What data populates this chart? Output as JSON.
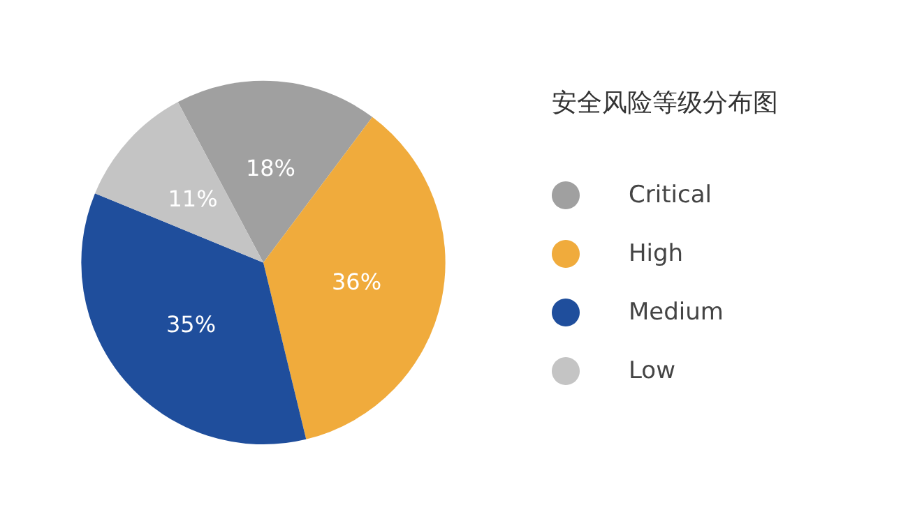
{
  "chart_data": {
    "type": "pie",
    "title": "安全风险等级分布图",
    "categories": [
      "Critical",
      "High",
      "Medium",
      "Low"
    ],
    "values": [
      18,
      36,
      35,
      11
    ],
    "value_labels": [
      "18%",
      "36%",
      "35%",
      "11%"
    ],
    "colors": [
      "#a0a0a0",
      "#f0ab3c",
      "#1f4e9c",
      "#c4c4c4"
    ],
    "legend": "right"
  }
}
